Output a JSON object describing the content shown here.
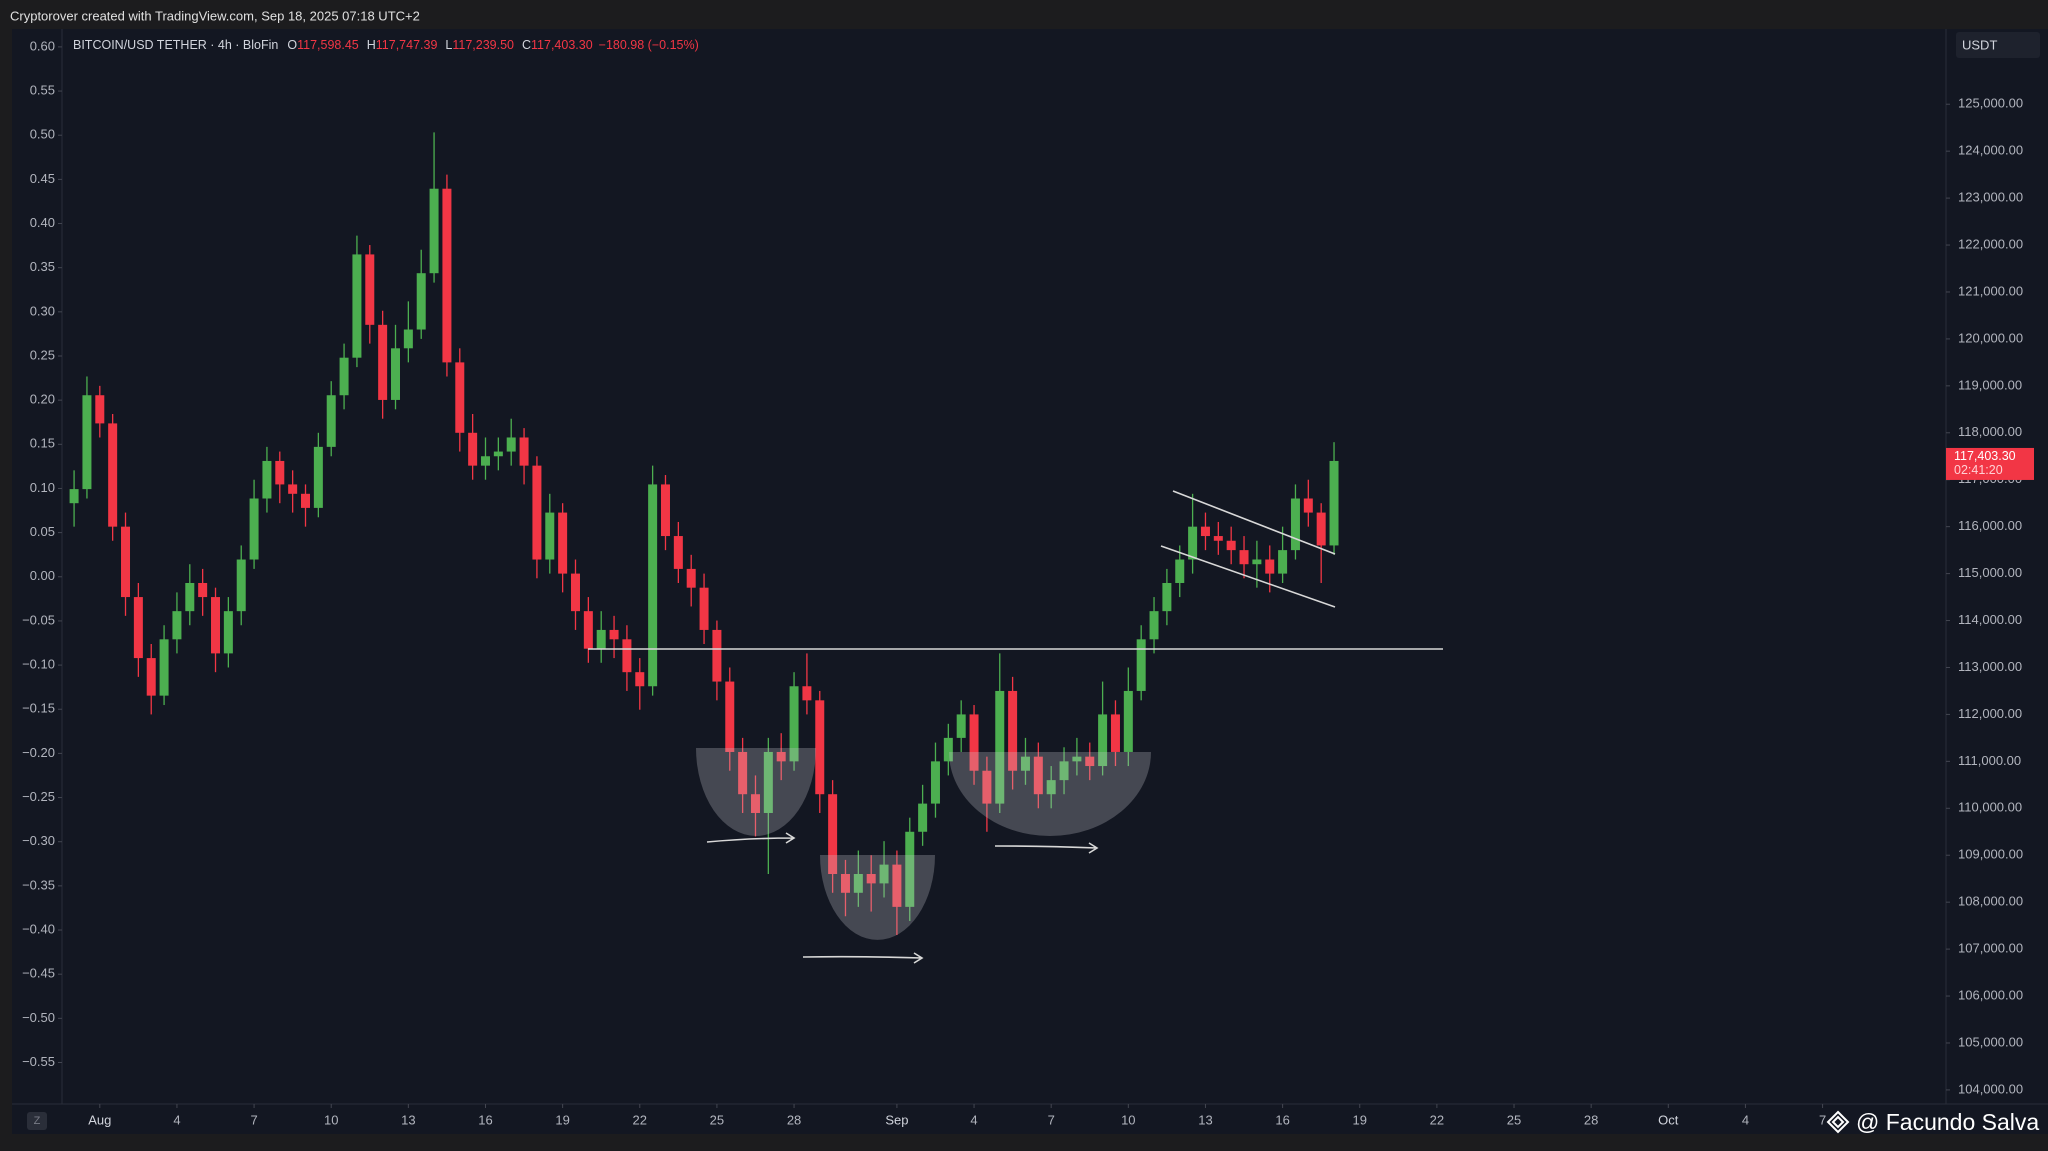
{
  "header": "Cryptorover created with TradingView.com, Sep 18, 2025 07:18 UTC+2",
  "watermark": "@ Facundo Salva",
  "chart_data": {
    "type": "candlestick",
    "title": "BITCOIN/USD TETHER · 4h · BloFin",
    "ohlc_legend": [
      {
        "label": "O",
        "value": "117,598.45"
      },
      {
        "label": "H",
        "value": "117,747.39"
      },
      {
        "label": "L",
        "value": "117,239.50"
      },
      {
        "label": "C",
        "value": "117,403.30"
      }
    ],
    "change": "−180.98 (−0.15%)",
    "currency": "USDT",
    "price_label": "117,403.30",
    "countdown": "02:41:20",
    "up_color": "#4caf50",
    "down_color": "#f23645",
    "x": [
      -1,
      -0.5,
      0,
      0.5,
      1,
      1.5,
      2,
      2.5,
      3,
      3.5,
      4,
      4.5,
      5,
      5.5,
      6,
      6.5,
      7,
      7.5,
      8,
      8.5,
      9,
      9.5,
      10,
      10.5,
      11,
      11.5,
      12,
      12.5,
      13,
      13.5,
      14,
      14.5,
      15,
      15.5,
      16,
      16.5,
      17,
      17.5,
      18,
      18.5,
      19,
      19.5,
      20,
      20.5,
      21,
      21.5,
      22,
      22.5,
      23,
      23.5,
      24,
      24.5,
      25,
      25.5,
      26,
      26.5,
      27,
      27.5,
      28,
      28.5,
      29,
      29.5,
      30,
      30.5,
      31,
      31.5,
      32,
      32.5,
      33,
      33.5,
      34,
      34.5,
      35,
      35.5,
      36,
      36.5,
      37,
      37.5,
      38,
      38.5,
      39,
      39.5,
      40,
      40.5,
      41,
      41.5,
      42,
      42.5,
      43,
      43.5,
      44,
      44.5,
      45,
      45.5,
      46,
      46.5,
      47,
      47.5,
      48
    ],
    "open": [
      116500,
      116800,
      118800,
      118200,
      116000,
      114500,
      113200,
      112400,
      113600,
      114200,
      114800,
      114500,
      113300,
      114200,
      115300,
      116600,
      117400,
      116900,
      116700,
      116400,
      117700,
      118800,
      119600,
      121800,
      120300,
      118700,
      119800,
      120200,
      121400,
      123200,
      119500,
      118000,
      117300,
      117500,
      117600,
      117900,
      117300,
      115300,
      116300,
      115000,
      114200,
      113400,
      113800,
      113600,
      112900,
      112600,
      116900,
      115800,
      115100,
      114700,
      113800,
      112700,
      111200,
      110300,
      109900,
      111200,
      111000,
      112600,
      112300,
      110300,
      108600,
      108200,
      108600,
      108400,
      108800,
      107900,
      109500,
      110100,
      111000,
      111500,
      112000,
      110800,
      110100,
      112500,
      110800,
      111100,
      110300,
      110600,
      111000,
      111100,
      110900,
      112000,
      111200,
      112500,
      113600,
      114200,
      114800,
      115300,
      116000,
      115800,
      115700,
      115500,
      115200,
      115300,
      115000,
      115500,
      116600,
      116300,
      115600
    ],
    "high": [
      117200,
      119200,
      119000,
      118400,
      116300,
      114800,
      113500,
      113900,
      114600,
      115200,
      115100,
      114700,
      114500,
      115600,
      117000,
      117700,
      117600,
      117200,
      116900,
      118000,
      119100,
      119900,
      122200,
      122000,
      120600,
      120300,
      120800,
      121900,
      124400,
      123500,
      119800,
      118400,
      117900,
      117900,
      118300,
      118100,
      117500,
      116700,
      116500,
      115300,
      114500,
      114200,
      114100,
      113900,
      113200,
      117300,
      117100,
      116100,
      115400,
      115000,
      114000,
      113000,
      111500,
      110700,
      111500,
      111600,
      112900,
      113300,
      112500,
      110600,
      108900,
      109100,
      109000,
      109300,
      109100,
      109800,
      110500,
      111400,
      111800,
      112300,
      112200,
      111100,
      113300,
      112800,
      111500,
      111400,
      110900,
      111300,
      111500,
      111400,
      112700,
      112300,
      113000,
      113900,
      114500,
      115100,
      115600,
      116700,
      116300,
      116100,
      116000,
      115800,
      115700,
      115600,
      116000,
      116900,
      117000,
      116500,
      117800
    ],
    "low": [
      116000,
      116600,
      117900,
      115700,
      114100,
      112800,
      112000,
      112200,
      113300,
      113900,
      114100,
      112900,
      113000,
      113900,
      115100,
      116300,
      116500,
      116300,
      116000,
      116200,
      117500,
      118500,
      119400,
      119900,
      118300,
      118500,
      119500,
      120000,
      121200,
      119200,
      117600,
      117000,
      117000,
      117200,
      117300,
      116900,
      114900,
      115000,
      114600,
      113800,
      113100,
      113100,
      113200,
      112500,
      112100,
      112400,
      115500,
      114800,
      114300,
      113500,
      112300,
      110800,
      109900,
      109400,
      108600,
      110600,
      110800,
      112000,
      109900,
      108200,
      107700,
      107900,
      107800,
      108100,
      107300,
      107600,
      109200,
      109800,
      110700,
      111200,
      110500,
      109500,
      109900,
      110400,
      110500,
      110000,
      110000,
      110300,
      110700,
      110600,
      110700,
      110900,
      110900,
      112300,
      113300,
      113900,
      114500,
      115000,
      115500,
      115400,
      115200,
      114900,
      114700,
      114600,
      114800,
      115300,
      116000,
      114800,
      115400
    ],
    "close": [
      116800,
      118800,
      118200,
      116000,
      114500,
      113200,
      112400,
      113600,
      114200,
      114800,
      114500,
      113300,
      114200,
      115300,
      116600,
      117400,
      116900,
      116700,
      116400,
      117700,
      118800,
      119600,
      121800,
      120300,
      118700,
      119800,
      120200,
      121400,
      123200,
      119500,
      118000,
      117300,
      117500,
      117600,
      117900,
      117300,
      115300,
      116300,
      115000,
      114200,
      113400,
      113800,
      113600,
      112900,
      112600,
      116900,
      115800,
      115100,
      114700,
      113800,
      112700,
      111200,
      110300,
      109900,
      111200,
      111000,
      112600,
      112300,
      110300,
      108600,
      108200,
      108600,
      108400,
      108800,
      107900,
      109500,
      110100,
      111000,
      111500,
      112000,
      110800,
      110100,
      112500,
      110800,
      111100,
      110300,
      110600,
      111000,
      111100,
      110900,
      112000,
      111200,
      112500,
      113600,
      114200,
      114800,
      115300,
      116000,
      115800,
      115700,
      115500,
      115200,
      115300,
      115000,
      115500,
      116600,
      116300,
      115600,
      117400
    ],
    "xlim": [
      -1.47,
      71.8
    ],
    "xticks": [
      {
        "value": 0,
        "label": "Aug"
      },
      {
        "value": 3,
        "label": "4"
      },
      {
        "value": 6,
        "label": "7"
      },
      {
        "value": 9,
        "label": "10"
      },
      {
        "value": 12,
        "label": "13"
      },
      {
        "value": 15,
        "label": "16"
      },
      {
        "value": 18,
        "label": "19"
      },
      {
        "value": 21,
        "label": "22"
      },
      {
        "value": 24,
        "label": "25"
      },
      {
        "value": 27,
        "label": "28"
      },
      {
        "value": 31,
        "label": "Sep"
      },
      {
        "value": 34,
        "label": "4"
      },
      {
        "value": 37,
        "label": "7"
      },
      {
        "value": 40,
        "label": "10"
      },
      {
        "value": 43,
        "label": "13"
      },
      {
        "value": 46,
        "label": "16"
      },
      {
        "value": 49,
        "label": "19"
      },
      {
        "value": 52,
        "label": "22"
      },
      {
        "value": 55,
        "label": "25"
      },
      {
        "value": 58,
        "label": "28"
      },
      {
        "value": 61,
        "label": "Oct"
      },
      {
        "value": 64,
        "label": "4"
      },
      {
        "value": 67,
        "label": "7"
      }
    ],
    "ylim": [
      103700,
      126560
    ],
    "yticks": [
      {
        "value": 104000,
        "label": "104,000.00"
      },
      {
        "value": 105000,
        "label": "105,000.00"
      },
      {
        "value": 106000,
        "label": "106,000.00"
      },
      {
        "value": 107000,
        "label": "107,000.00"
      },
      {
        "value": 108000,
        "label": "108,000.00"
      },
      {
        "value": 109000,
        "label": "109,000.00"
      },
      {
        "value": 110000,
        "label": "110,000.00"
      },
      {
        "value": 111000,
        "label": "111,000.00"
      },
      {
        "value": 112000,
        "label": "112,000.00"
      },
      {
        "value": 113000,
        "label": "113,000.00"
      },
      {
        "value": 114000,
        "label": "114,000.00"
      },
      {
        "value": 115000,
        "label": "115,000.00"
      },
      {
        "value": 116000,
        "label": "116,000.00"
      },
      {
        "value": 117000,
        "label": "117,000.00"
      },
      {
        "value": 118000,
        "label": "118,000.00"
      },
      {
        "value": 119000,
        "label": "119,000.00"
      },
      {
        "value": 120000,
        "label": "120,000.00"
      },
      {
        "value": 121000,
        "label": "121,000.00"
      },
      {
        "value": 122000,
        "label": "122,000.00"
      },
      {
        "value": 123000,
        "label": "123,000.00"
      },
      {
        "value": 124000,
        "label": "124,000.00"
      },
      {
        "value": 125000,
        "label": "125,000.00"
      }
    ],
    "y2lim": [
      -0.597,
      0.618
    ],
    "y2ticks": [
      {
        "value": 0.6,
        "label": "0.60"
      },
      {
        "value": 0.55,
        "label": "0.55"
      },
      {
        "value": 0.5,
        "label": "0.50"
      },
      {
        "value": 0.45,
        "label": "0.45"
      },
      {
        "value": 0.4,
        "label": "0.40"
      },
      {
        "value": 0.35,
        "label": "0.35"
      },
      {
        "value": 0.3,
        "label": "0.30"
      },
      {
        "value": 0.25,
        "label": "0.25"
      },
      {
        "value": 0.2,
        "label": "0.20"
      },
      {
        "value": 0.15,
        "label": "0.15"
      },
      {
        "value": 0.1,
        "label": "0.10"
      },
      {
        "value": 0.05,
        "label": "0.05"
      },
      {
        "value": 0,
        "label": "0.00"
      },
      {
        "value": -0.05,
        "label": "−0.05"
      },
      {
        "value": -0.1,
        "label": "−0.10"
      },
      {
        "value": -0.15,
        "label": "−0.15"
      },
      {
        "value": -0.2,
        "label": "−0.20"
      },
      {
        "value": -0.25,
        "label": "−0.25"
      },
      {
        "value": -0.3,
        "label": "−0.30"
      },
      {
        "value": -0.35,
        "label": "−0.35"
      },
      {
        "value": -0.4,
        "label": "−0.40"
      },
      {
        "value": -0.45,
        "label": "−0.45"
      },
      {
        "value": -0.5,
        "label": "−0.50"
      },
      {
        "value": -0.55,
        "label": "−0.55"
      }
    ],
    "grid": false
  }
}
